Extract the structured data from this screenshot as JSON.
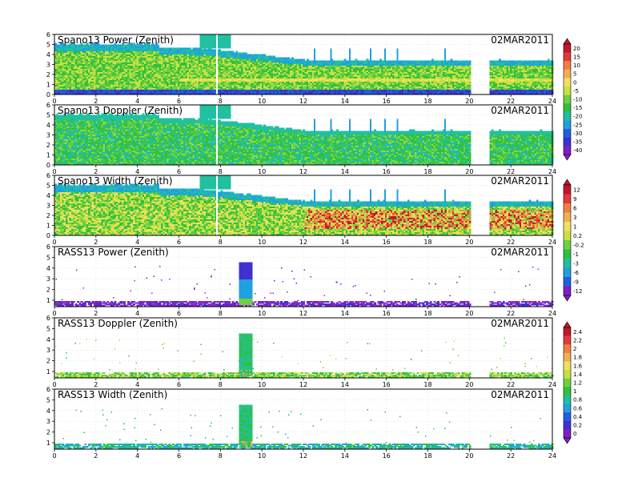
{
  "figure": {
    "date": "02MAR2011"
  },
  "panels": [
    {
      "title": "Spano13 Power (Zenith)",
      "kind": "profiler_power"
    },
    {
      "title": "Spano13 Doppler (Zenith)",
      "kind": "profiler_doppler"
    },
    {
      "title": "Spano13 Width (Zenith)",
      "kind": "profiler_width"
    },
    {
      "title": "RASS13 Power (Zenith)",
      "kind": "rass_power"
    },
    {
      "title": "RASS13 Doppler (Zenith)",
      "kind": "rass_doppler"
    },
    {
      "title": "RASS13 Width (Zenith)",
      "kind": "rass_width"
    }
  ],
  "chart_data": [
    {
      "type": "heatmap",
      "title": "Spano13 Power (Zenith)",
      "x_ticks": [
        "0",
        "2",
        "4",
        "6",
        "8",
        "10",
        "12",
        "14",
        "16",
        "18",
        "20",
        "22",
        "24"
      ],
      "y_ticks": [
        "0",
        "1",
        "2",
        "3",
        "4",
        "5",
        "6"
      ],
      "xlim": [
        0,
        24
      ],
      "ylim": [
        0,
        6
      ],
      "data_gaps_x": [
        [
          20.0,
          20.9
        ]
      ],
      "top_height_profile": [
        [
          0,
          5.0
        ],
        [
          5,
          4.6
        ],
        [
          7,
          4.6
        ],
        [
          9.5,
          4.0
        ],
        [
          12,
          3.4
        ],
        [
          20,
          3.3
        ],
        [
          24,
          3.3
        ]
      ],
      "colorbar": {
        "labels": [
          "20",
          "15",
          "10",
          "5",
          "0",
          "-5",
          "-10",
          "-15",
          "-20",
          "-25",
          "-30",
          "-35",
          "-40"
        ],
        "colors": [
          "#c0182a",
          "#e23a3a",
          "#f08040",
          "#f0b050",
          "#f0e060",
          "#c8e040",
          "#70d040",
          "#30c040",
          "#20c0a0",
          "#20a0e0",
          "#2060e0",
          "#4030d0",
          "#8020c0"
        ]
      }
    },
    {
      "type": "heatmap",
      "title": "Spano13 Doppler (Zenith)",
      "x_ticks": [
        "0",
        "2",
        "4",
        "6",
        "8",
        "10",
        "12",
        "14",
        "16",
        "18",
        "20",
        "22",
        "24"
      ],
      "y_ticks": [
        "0",
        "1",
        "2",
        "3",
        "4",
        "5",
        "6"
      ],
      "xlim": [
        0,
        24
      ],
      "ylim": [
        0,
        6
      ],
      "data_gaps_x": [
        [
          20.0,
          20.9
        ]
      ]
    },
    {
      "type": "heatmap",
      "title": "Spano13 Width (Zenith)",
      "x_ticks": [
        "0",
        "2",
        "4",
        "6",
        "8",
        "10",
        "12",
        "14",
        "16",
        "18",
        "20",
        "22",
        "24"
      ],
      "y_ticks": [
        "0",
        "1",
        "2",
        "3",
        "4",
        "5",
        "6"
      ],
      "xlim": [
        0,
        24
      ],
      "ylim": [
        0,
        6
      ],
      "data_gaps_x": [
        [
          20.0,
          20.9
        ]
      ],
      "colorbar": {
        "labels": [
          "12",
          "9",
          "6",
          "3",
          "1",
          "0.2",
          "-0.2",
          "-1",
          "-3",
          "-6",
          "-9",
          "-12"
        ],
        "colors": [
          "#c0182a",
          "#e23a3a",
          "#f08040",
          "#f0b050",
          "#f0e060",
          "#c8e040",
          "#70d040",
          "#30c040",
          "#20c0a0",
          "#20a0e0",
          "#2060e0",
          "#8020c0"
        ]
      }
    },
    {
      "type": "heatmap",
      "title": "RASS13 Power (Zenith)",
      "x_ticks": [
        "0",
        "2",
        "4",
        "6",
        "8",
        "10",
        "12",
        "14",
        "16",
        "18",
        "20",
        "22",
        "24"
      ],
      "y_ticks": [
        "1",
        "2",
        "3",
        "4",
        "5",
        "6"
      ],
      "xlim": [
        0,
        24
      ],
      "ylim": [
        0.4,
        6
      ],
      "data_gaps_x": [
        [
          20.0,
          20.9
        ]
      ],
      "burst_x": [
        8.9,
        9.5
      ],
      "burst_top": 4.5
    },
    {
      "type": "heatmap",
      "title": "RASS13 Doppler (Zenith)",
      "x_ticks": [
        "0",
        "2",
        "4",
        "6",
        "8",
        "10",
        "12",
        "14",
        "16",
        "18",
        "20",
        "22",
        "24"
      ],
      "y_ticks": [
        "1",
        "2",
        "3",
        "4",
        "5",
        "6"
      ],
      "xlim": [
        0,
        24
      ],
      "ylim": [
        0.4,
        6
      ],
      "data_gaps_x": [
        [
          20.0,
          20.9
        ]
      ],
      "burst_x": [
        8.9,
        9.5
      ],
      "burst_top": 4.5,
      "colorbar": {
        "labels": [
          "2.4",
          "2.2",
          "2",
          "1.8",
          "1.6",
          "1.4",
          "1.2",
          "1",
          "0.8",
          "0.6",
          "0.4",
          "0.2",
          "0"
        ],
        "colors": [
          "#c0182a",
          "#e23a3a",
          "#f08040",
          "#f0b050",
          "#f0e060",
          "#c8e040",
          "#70d040",
          "#30c040",
          "#20c0a0",
          "#20a0e0",
          "#2060e0",
          "#4030d0",
          "#8020c0"
        ]
      }
    },
    {
      "type": "heatmap",
      "title": "RASS13 Width (Zenith)",
      "x_ticks": [
        "0",
        "2",
        "4",
        "6",
        "8",
        "10",
        "12",
        "14",
        "16",
        "18",
        "20",
        "22",
        "24"
      ],
      "y_ticks": [
        "1",
        "2",
        "3",
        "4",
        "5",
        "6"
      ],
      "xlim": [
        0,
        24
      ],
      "ylim": [
        0.4,
        6
      ],
      "data_gaps_x": [
        [
          20.0,
          20.9
        ]
      ],
      "burst_x": [
        8.9,
        9.5
      ],
      "burst_top": 4.5
    }
  ]
}
